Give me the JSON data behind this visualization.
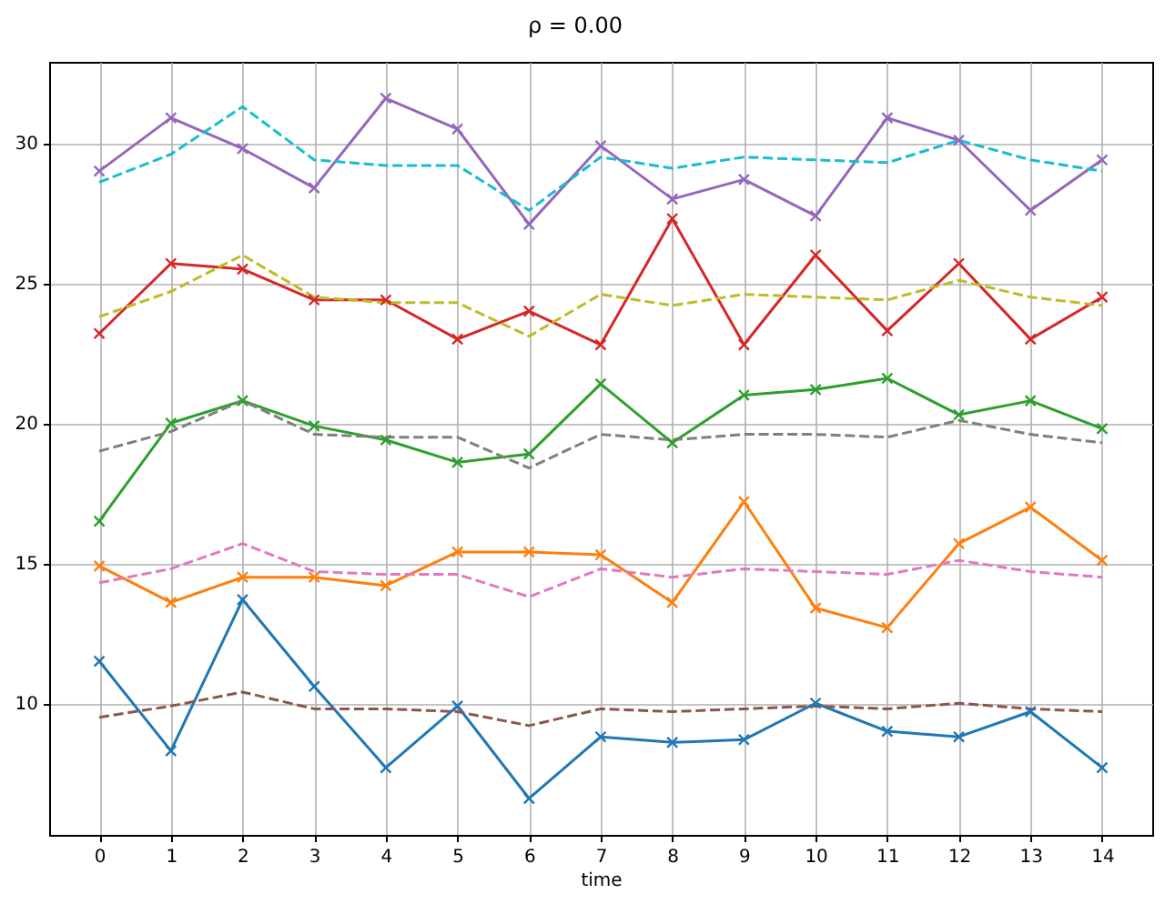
{
  "chart_data": {
    "type": "line",
    "title": "ρ = 0.00",
    "xlabel": "time",
    "x": [
      0,
      1,
      2,
      3,
      4,
      5,
      6,
      7,
      8,
      9,
      10,
      11,
      12,
      13,
      14
    ],
    "xlim": [
      -0.7,
      14.7
    ],
    "xticks": [
      0,
      1,
      2,
      3,
      4,
      5,
      6,
      7,
      8,
      9,
      10,
      11,
      12,
      13,
      14
    ],
    "ylim": [
      5.3,
      32.9
    ],
    "yticks": [
      10,
      15,
      20,
      25,
      30
    ],
    "grid": true,
    "series": [
      {
        "color": "#1f77b4",
        "marker": "cross",
        "line_style": "solid",
        "values": [
          11.5,
          8.3,
          13.7,
          10.6,
          7.7,
          9.9,
          6.6,
          8.8,
          8.6,
          8.7,
          10.0,
          9.0,
          8.8,
          9.7,
          7.7
        ]
      },
      {
        "color": "#ff7f0e",
        "marker": "cross",
        "line_style": "solid",
        "values": [
          14.9,
          13.6,
          14.5,
          14.5,
          14.2,
          15.4,
          15.4,
          15.3,
          13.6,
          17.2,
          13.4,
          12.7,
          15.7,
          17.0,
          15.1
        ]
      },
      {
        "color": "#2ca02c",
        "marker": "cross",
        "line_style": "solid",
        "values": [
          16.5,
          20.0,
          20.8,
          19.9,
          19.4,
          18.6,
          18.9,
          21.4,
          19.3,
          21.0,
          21.2,
          21.6,
          20.3,
          20.8,
          19.8
        ]
      },
      {
        "color": "#d62728",
        "marker": "cross",
        "line_style": "solid",
        "values": [
          23.2,
          25.7,
          25.5,
          24.4,
          24.4,
          23.0,
          24.0,
          22.8,
          27.3,
          22.8,
          26.0,
          23.3,
          25.7,
          23.0,
          24.5
        ]
      },
      {
        "color": "#9467bd",
        "marker": "cross",
        "line_style": "solid",
        "values": [
          29.0,
          30.9,
          29.8,
          28.4,
          31.6,
          30.5,
          27.1,
          29.9,
          28.0,
          28.7,
          27.4,
          30.9,
          30.1,
          27.6,
          29.4
        ]
      },
      {
        "color": "#8c564b",
        "marker": "none",
        "line_style": "dashed",
        "values": [
          9.5,
          9.9,
          10.4,
          9.8,
          9.8,
          9.7,
          9.2,
          9.8,
          9.7,
          9.8,
          9.9,
          9.8,
          10.0,
          9.8,
          9.7
        ]
      },
      {
        "color": "#e377c2",
        "marker": "none",
        "line_style": "dashed",
        "values": [
          14.3,
          14.8,
          15.7,
          14.7,
          14.6,
          14.6,
          13.8,
          14.8,
          14.5,
          14.8,
          14.7,
          14.6,
          15.1,
          14.7,
          14.5
        ]
      },
      {
        "color": "#7f7f7f",
        "marker": "none",
        "line_style": "dashed",
        "values": [
          19.0,
          19.7,
          20.8,
          19.6,
          19.5,
          19.5,
          18.4,
          19.6,
          19.4,
          19.6,
          19.6,
          19.5,
          20.1,
          19.6,
          19.3
        ]
      },
      {
        "color": "#bcbd22",
        "marker": "none",
        "line_style": "dashed",
        "values": [
          23.8,
          24.7,
          26.0,
          24.5,
          24.3,
          24.3,
          23.1,
          24.6,
          24.2,
          24.6,
          24.5,
          24.4,
          25.1,
          24.5,
          24.2
        ]
      },
      {
        "color": "#17becf",
        "marker": "none",
        "line_style": "dashed",
        "values": [
          28.6,
          29.6,
          31.3,
          29.4,
          29.2,
          29.2,
          27.6,
          29.5,
          29.1,
          29.5,
          29.4,
          29.3,
          30.1,
          29.4,
          29.0
        ]
      }
    ]
  }
}
